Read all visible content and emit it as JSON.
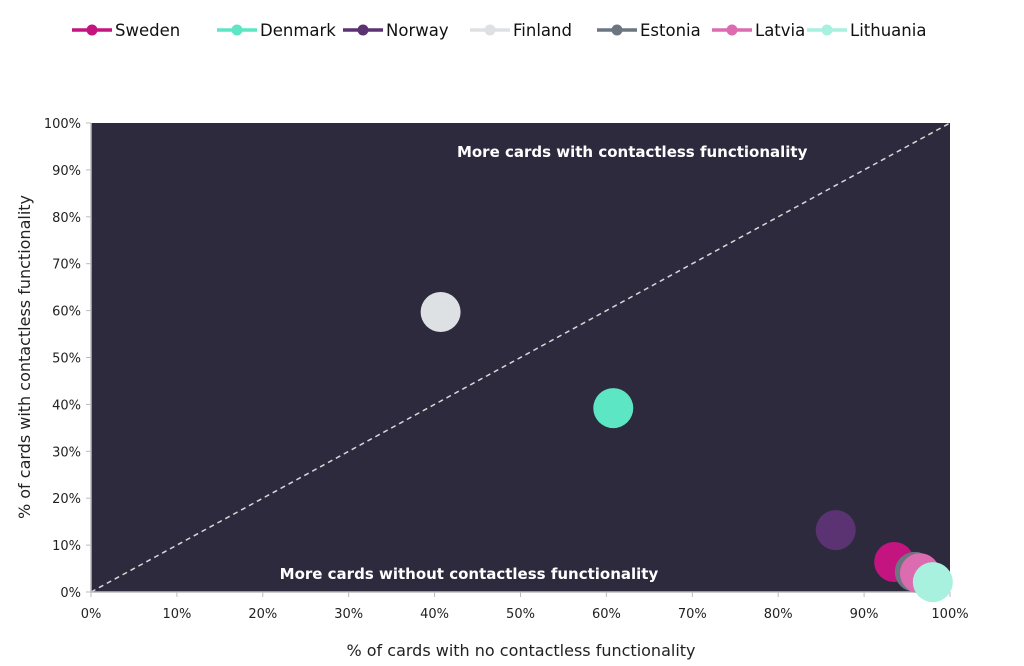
{
  "chart_data": {
    "type": "scatter",
    "xlabel": "% of cards with no contactless functionality",
    "ylabel": "% of cards with contactless functionality",
    "xlim": [
      0,
      100
    ],
    "ylim": [
      0,
      100
    ],
    "x_ticks": [
      "0%",
      "10%",
      "20%",
      "30%",
      "40%",
      "50%",
      "60%",
      "70%",
      "80%",
      "90%",
      "100%"
    ],
    "y_ticks": [
      "0%",
      "10%",
      "20%",
      "30%",
      "40%",
      "50%",
      "60%",
      "70%",
      "80%",
      "90%",
      "100%"
    ],
    "grid": false,
    "legend_position": "top",
    "plot_background": "#2e2a3e",
    "reference_line": {
      "from": [
        0,
        0
      ],
      "to": [
        100,
        100
      ],
      "style": "dashed",
      "color": "#d8d8d8"
    },
    "annotations": [
      {
        "text": "More cards with contactless functionality",
        "x": 63,
        "y": 94
      },
      {
        "text": "More cards without contactless functionality",
        "x": 44,
        "y": 4
      }
    ],
    "series": [
      {
        "name": "Sweden",
        "color": "#c3147f",
        "x": 93.5,
        "y": 6.4
      },
      {
        "name": "Denmark",
        "color": "#5ce6c3",
        "x": 60.8,
        "y": 39.2
      },
      {
        "name": "Norway",
        "color": "#5b3272",
        "x": 86.7,
        "y": 13.2
      },
      {
        "name": "Finland",
        "color": "#dde1e4",
        "x": 40.7,
        "y": 59.7
      },
      {
        "name": "Estonia",
        "color": "#6b7681",
        "x": 95.9,
        "y": 4.3
      },
      {
        "name": "Latvia",
        "color": "#dc6bb0",
        "x": 96.5,
        "y": 4.0
      },
      {
        "name": "Lithuania",
        "color": "#a9f1df",
        "x": 98.0,
        "y": 2.1
      }
    ]
  }
}
